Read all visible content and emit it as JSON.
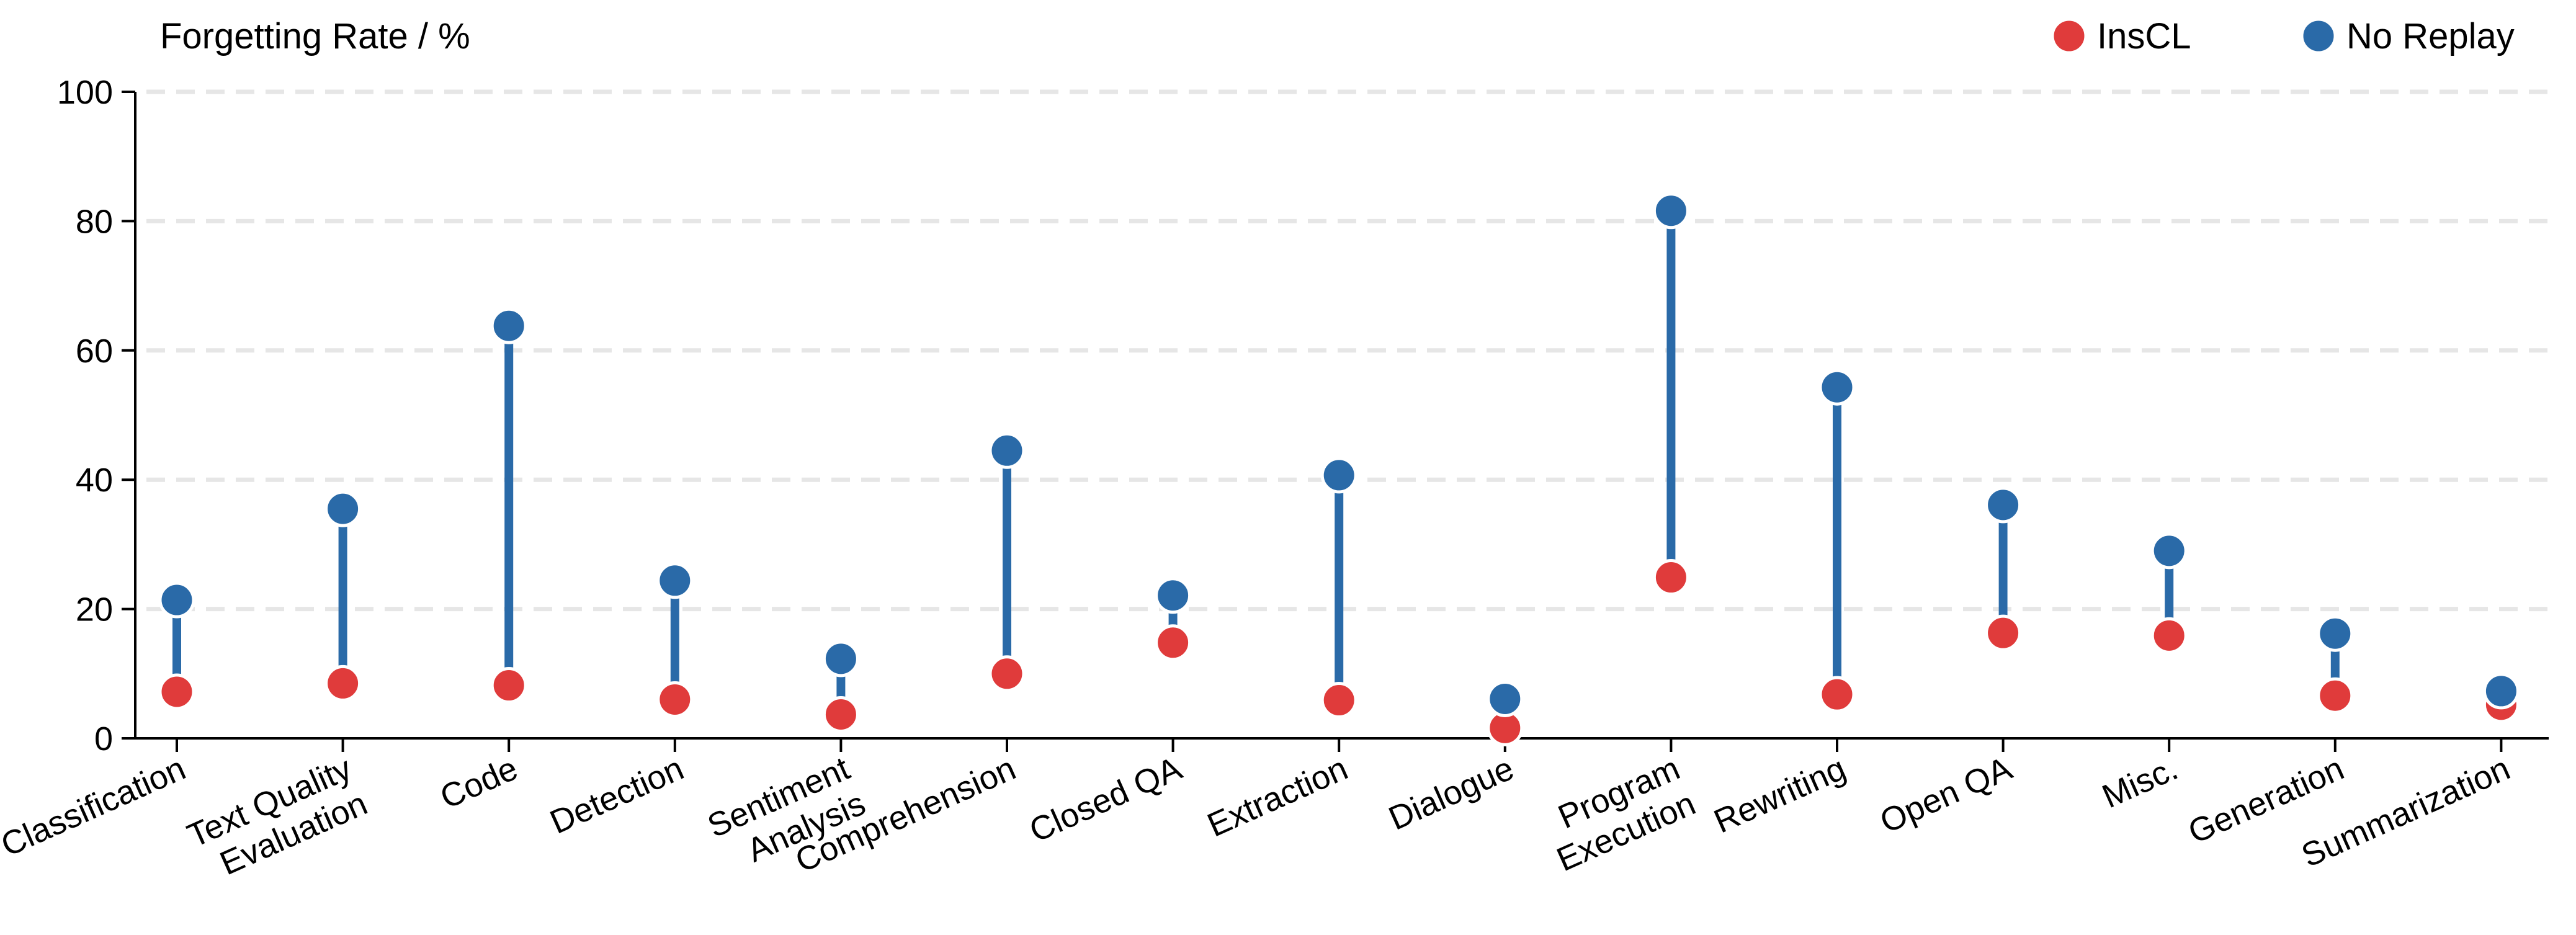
{
  "chart_data": {
    "type": "dumbbell",
    "ylabel": "Forgetting Rate / %",
    "ylim": [
      0,
      100
    ],
    "yticks": [
      0,
      20,
      40,
      60,
      80,
      100
    ],
    "grid": true,
    "legend_position": "top-right",
    "categories": [
      "Classification",
      "Text Quality Evaluation",
      "Code",
      "Detection",
      "Sentiment Analysis",
      "Comprehension",
      "Closed QA",
      "Extraction",
      "Dialogue",
      "Program Execution",
      "Rewriting",
      "Open QA",
      "Misc.",
      "Generation",
      "Summarization"
    ],
    "category_lines": [
      [
        "Classification"
      ],
      [
        "Text Quality",
        "Evaluation"
      ],
      [
        "Code"
      ],
      [
        "Detection"
      ],
      [
        "Sentiment",
        "Analysis"
      ],
      [
        "Comprehension"
      ],
      [
        "Closed QA"
      ],
      [
        "Extraction"
      ],
      [
        "Dialogue"
      ],
      [
        "Program",
        "Execution"
      ],
      [
        "Rewriting"
      ],
      [
        "Open QA"
      ],
      [
        "Misc."
      ],
      [
        "Generation"
      ],
      [
        "Summarization"
      ]
    ],
    "series": [
      {
        "name": "InsCL",
        "color": "#e03b3b",
        "values": [
          7.2,
          8.5,
          8.2,
          6.0,
          3.7,
          10.0,
          14.8,
          5.9,
          1.6,
          24.9,
          6.8,
          16.3,
          15.9,
          6.6,
          5.2
        ]
      },
      {
        "name": "No Replay",
        "color": "#2a6aa8",
        "values": [
          21.4,
          35.5,
          63.8,
          24.4,
          12.3,
          44.5,
          22.1,
          40.7,
          6.1,
          81.6,
          54.3,
          36.1,
          29.0,
          16.2,
          7.3
        ]
      }
    ]
  }
}
